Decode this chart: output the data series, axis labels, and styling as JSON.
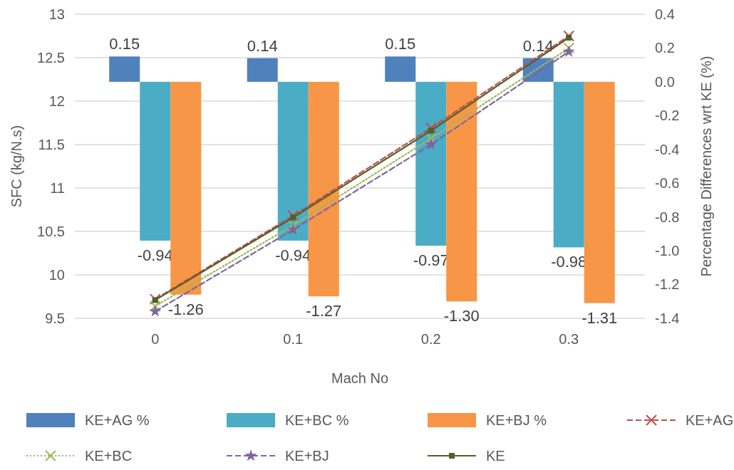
{
  "chart_data": {
    "type": "bar",
    "xlabel": "Mach No",
    "ylabel": "SFC (kg/N.s)",
    "y2label": "Percentage Differences wrt KE (%)",
    "categories": [
      "0",
      "0.1",
      "0.2",
      "0.3"
    ],
    "ylim": [
      9.5,
      13
    ],
    "yticks": [
      9.5,
      10,
      10.5,
      11,
      11.5,
      12,
      12.5,
      13
    ],
    "y2lim": [
      -1.4,
      0.4
    ],
    "y2ticks": [
      -1.4,
      -1.2,
      {
        "value": -1,
        "label": "-1.0"
      },
      -0.8,
      -0.6,
      -0.4,
      -0.2,
      {
        "value": 0,
        "label": "0.0"
      },
      0.2,
      0.4
    ],
    "grid": "y",
    "legend": "bottom",
    "series": [
      {
        "name": "KE+AG %",
        "type": "bar",
        "axis": "y2",
        "color": "#4f81bd",
        "values": [
          0.15,
          0.14,
          0.15,
          0.14
        ],
        "value_labels": [
          "0.15",
          "0.14",
          "0.15",
          "0.14"
        ]
      },
      {
        "name": "KE+BC %",
        "type": "bar",
        "axis": "y2",
        "color": "#4bacc6",
        "values": [
          -0.94,
          -0.94,
          -0.97,
          -0.98
        ],
        "value_labels": [
          "-0.94",
          "-0.94",
          "-0.97",
          "-0.98"
        ]
      },
      {
        "name": "KE+BJ %",
        "type": "bar",
        "axis": "y2",
        "color": "#f79646",
        "values": [
          -1.26,
          -1.27,
          -1.3,
          -1.31
        ],
        "value_labels": [
          "-1.26",
          "-1.27",
          "-1.30",
          "-1.31"
        ]
      },
      {
        "name": "KE+AG",
        "type": "line",
        "axis": "y",
        "color": "#c0504d",
        "line_style": "dashed",
        "marker": "cross",
        "values": [
          9.72,
          10.68,
          11.69,
          12.75
        ]
      },
      {
        "name": "KE+BC",
        "type": "line",
        "axis": "y",
        "color": "#9bbb59",
        "line_style": "dotted",
        "marker": "cross",
        "values": [
          9.64,
          10.57,
          11.57,
          12.61
        ]
      },
      {
        "name": "KE+BJ",
        "type": "line",
        "axis": "y",
        "color": "#8064a2",
        "line_style": "dashed",
        "marker": "star",
        "values": [
          9.58,
          10.52,
          11.5,
          12.57
        ]
      },
      {
        "name": "KE",
        "type": "line",
        "axis": "y",
        "color": "#4f6228",
        "line_style": "solid",
        "marker": "square",
        "values": [
          9.71,
          10.66,
          11.66,
          12.73
        ]
      }
    ]
  }
}
